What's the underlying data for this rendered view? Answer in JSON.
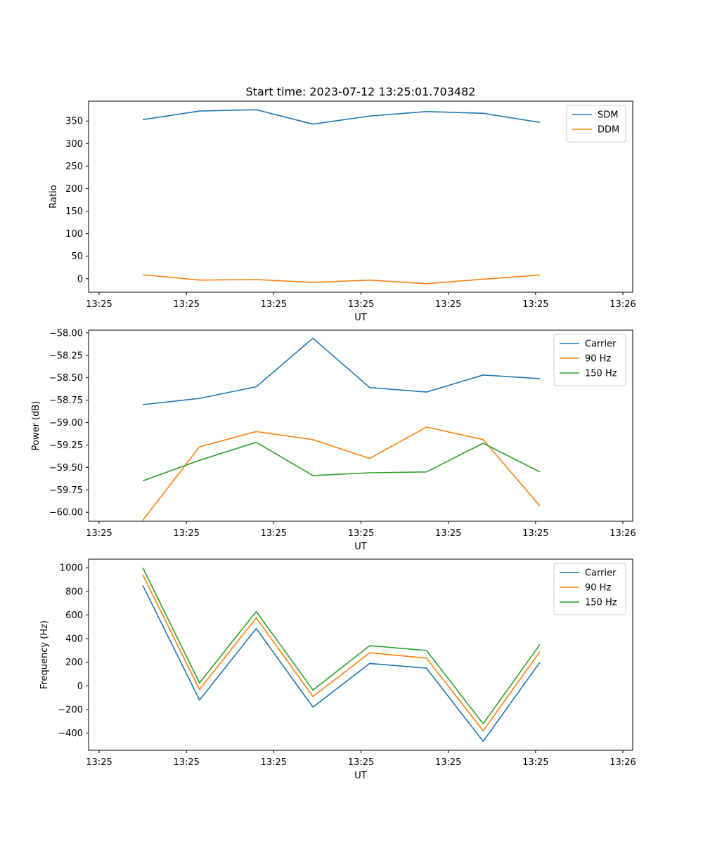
{
  "figure_title": "Start time: 2023-07-12 13:25:01.703482",
  "chart_data": [
    {
      "type": "line",
      "id": "ratio",
      "ylabel": "Ratio",
      "xlabel": "UT",
      "x": [
        0.5,
        1.15,
        1.8,
        2.45,
        3.1,
        3.75,
        4.4,
        5.05
      ],
      "xlim": [
        0,
        6
      ],
      "xticks": [
        0,
        1,
        2,
        3,
        4,
        5,
        6
      ],
      "xtick_labels": [
        "13:25",
        "13:25",
        "13:25",
        "13:25",
        "13:25",
        "13:25",
        "13:26"
      ],
      "ylim": [
        -30,
        394
      ],
      "yticks": [
        0,
        50,
        100,
        150,
        200,
        250,
        300,
        350
      ],
      "ytick_labels": [
        "0",
        "50",
        "100",
        "150",
        "200",
        "250",
        "300",
        "350"
      ],
      "legend_position": "top-right",
      "series": [
        {
          "name": "SDM",
          "color": "#1f77b4",
          "values": [
            353,
            372,
            375,
            343,
            361,
            371,
            367,
            347
          ]
        },
        {
          "name": "DDM",
          "color": "#ff7f0e",
          "values": [
            9,
            -3,
            -2,
            -8,
            -3,
            -11,
            -1,
            8
          ]
        }
      ]
    },
    {
      "type": "line",
      "id": "power",
      "ylabel": "Power (dB)",
      "xlabel": "UT",
      "x": [
        0.5,
        1.15,
        1.8,
        2.45,
        3.1,
        3.75,
        4.4,
        5.05
      ],
      "xlim": [
        0,
        6
      ],
      "xticks": [
        0,
        1,
        2,
        3,
        4,
        5,
        6
      ],
      "xtick_labels": [
        "13:25",
        "13:25",
        "13:25",
        "13:25",
        "13:25",
        "13:25",
        "13:26"
      ],
      "ylim": [
        -60.1,
        -57.97
      ],
      "yticks": [
        -60.0,
        -59.75,
        -59.5,
        -59.25,
        -59.0,
        -58.75,
        -58.5,
        -58.25,
        -58.0
      ],
      "ytick_labels": [
        "−60.00",
        "−59.75",
        "−59.50",
        "−59.25",
        "−59.00",
        "−58.75",
        "−58.50",
        "−58.25",
        "−58.00"
      ],
      "legend_position": "top-right",
      "series": [
        {
          "name": "Carrier",
          "color": "#1f77b4",
          "values": [
            -58.8,
            -58.73,
            -58.6,
            -58.06,
            -58.61,
            -58.66,
            -58.47,
            -58.51
          ]
        },
        {
          "name": "90 Hz",
          "color": "#ff7f0e",
          "values": [
            -60.09,
            -59.27,
            -59.1,
            -59.19,
            -59.4,
            -59.05,
            -59.19,
            -59.93
          ]
        },
        {
          "name": "150 Hz",
          "color": "#2ca02c",
          "values": [
            -59.65,
            -59.42,
            -59.22,
            -59.59,
            -59.56,
            -59.55,
            -59.23,
            -59.55
          ]
        }
      ]
    },
    {
      "type": "line",
      "id": "frequency",
      "ylabel": "Frequency (Hz)",
      "xlabel": "UT",
      "x": [
        0.5,
        1.15,
        1.8,
        2.45,
        3.1,
        3.75,
        4.4,
        5.05
      ],
      "xlim": [
        0,
        6
      ],
      "xticks": [
        0,
        1,
        2,
        3,
        4,
        5,
        6
      ],
      "xtick_labels": [
        "13:25",
        "13:25",
        "13:25",
        "13:25",
        "13:25",
        "13:25",
        "13:26"
      ],
      "ylim": [
        -545,
        1072
      ],
      "yticks": [
        -400,
        -200,
        0,
        200,
        400,
        600,
        800,
        1000
      ],
      "ytick_labels": [
        "−400",
        "−200",
        "0",
        "200",
        "400",
        "600",
        "800",
        "1000"
      ],
      "legend_position": "top-right",
      "series": [
        {
          "name": "Carrier",
          "color": "#1f77b4",
          "values": [
            850,
            -120,
            485,
            -180,
            190,
            150,
            -470,
            200
          ]
        },
        {
          "name": "90 Hz",
          "color": "#ff7f0e",
          "values": [
            940,
            -30,
            575,
            -90,
            280,
            235,
            -380,
            290
          ]
        },
        {
          "name": "150 Hz",
          "color": "#2ca02c",
          "values": [
            1000,
            25,
            630,
            -35,
            340,
            300,
            -320,
            350
          ]
        }
      ]
    }
  ]
}
